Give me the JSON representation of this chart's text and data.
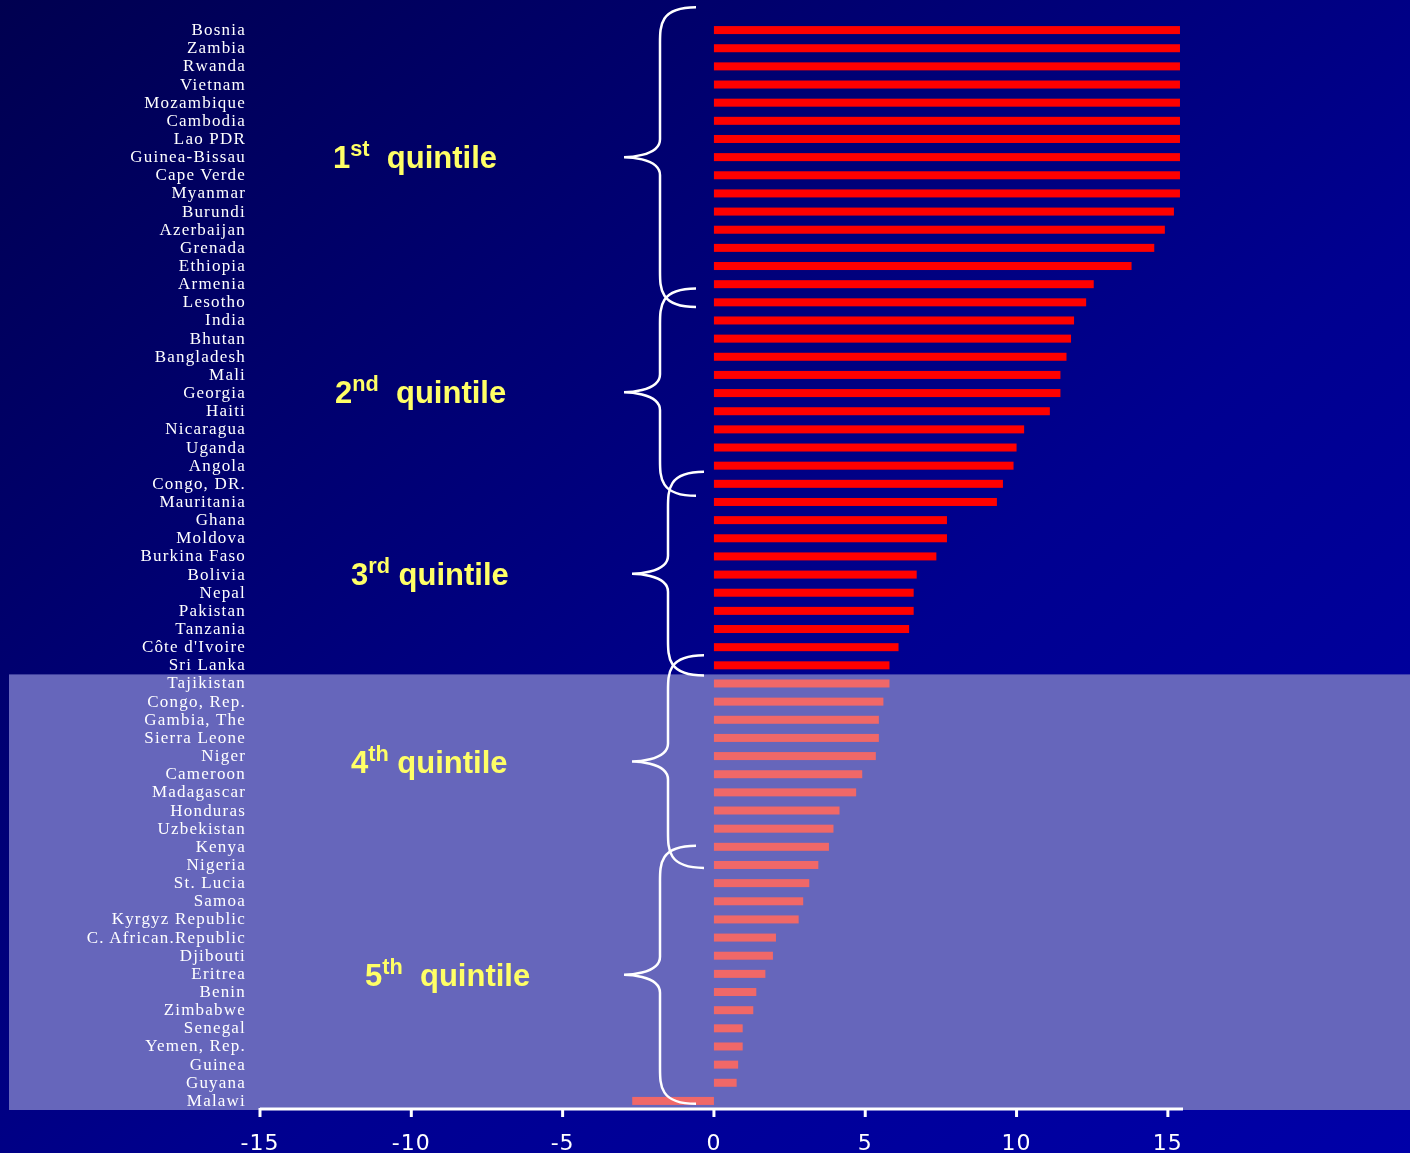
{
  "chart_data": {
    "type": "bar",
    "orientation": "horizontal",
    "categories": [
      "Bosnia",
      "Zambia",
      "Rwanda",
      "Vietnam",
      "Mozambique",
      "Cambodia",
      "Lao PDR",
      "Guinea-Bissau",
      "Cape Verde",
      "Myanmar",
      "Burundi",
      "Azerbaijan",
      "Grenada",
      "Ethiopia",
      "Armenia",
      "Lesotho",
      "India",
      "Bhutan",
      "Bangladesh",
      "Mali",
      "Georgia",
      "Haiti",
      "Nicaragua",
      "Uganda",
      "Angola",
      "Congo, DR.",
      "Mauritania",
      "Ghana",
      "Moldova",
      "Burkina Faso",
      "Bolivia",
      "Nepal",
      "Pakistan",
      "Tanzania",
      "Côte d'Ivoire",
      "Sri Lanka",
      "Tajikistan",
      "Congo, Rep.",
      "Gambia, The",
      "Sierra Leone",
      "Niger",
      "Cameroon",
      "Madagascar",
      "Honduras",
      "Uzbekistan",
      "Kenya",
      "Nigeria",
      "St. Lucia",
      "Samoa",
      "Kyrgyz Republic",
      "C. African.Republic",
      "Djibouti",
      "Eritrea",
      "Benin",
      "Zimbabwe",
      "Senegal",
      "Yemen, Rep.",
      "Guinea",
      "Guyana",
      "Malawi"
    ],
    "values": [
      15.4,
      15.4,
      15.4,
      15.4,
      15.4,
      15.4,
      15.4,
      15.4,
      15.4,
      15.4,
      15.2,
      14.9,
      14.55,
      13.8,
      12.55,
      12.3,
      11.9,
      11.8,
      11.65,
      11.45,
      11.45,
      11.1,
      10.25,
      10.0,
      9.9,
      9.55,
      9.35,
      7.7,
      7.7,
      7.35,
      6.7,
      6.6,
      6.6,
      6.45,
      6.1,
      5.8,
      5.8,
      5.6,
      5.45,
      5.45,
      5.35,
      4.9,
      4.7,
      4.15,
      3.95,
      3.8,
      3.45,
      3.15,
      2.95,
      2.8,
      2.05,
      1.95,
      1.7,
      1.4,
      1.3,
      0.95,
      0.95,
      0.8,
      0.75,
      -2.7
    ],
    "colors": [
      "#ff0000",
      "#ff0000",
      "#ff0000",
      "#ff0000",
      "#ff0000",
      "#ff0000",
      "#ff0000",
      "#ff0000",
      "#ff0000",
      "#ff0000",
      "#ff0000",
      "#ff0000",
      "#ff0000",
      "#ff0000",
      "#ff0000",
      "#ff0000",
      "#ff0000",
      "#ff0000",
      "#ff0000",
      "#ff0000",
      "#ff0000",
      "#ff0000",
      "#ff0000",
      "#ff0000",
      "#ff0000",
      "#ff0000",
      "#ff0000",
      "#ff0000",
      "#ff0000",
      "#ff0000",
      "#ff0000",
      "#ff0000",
      "#ff0000",
      "#ff0000",
      "#ff0000",
      "#ff0000",
      "#f06868",
      "#f06868",
      "#f06868",
      "#f06868",
      "#f06868",
      "#f06868",
      "#f06868",
      "#f06868",
      "#f06868",
      "#f06868",
      "#f06868",
      "#f06868",
      "#f06868",
      "#f06868",
      "#f06868",
      "#f06868",
      "#f06868",
      "#f06868",
      "#f06868",
      "#f06868",
      "#f06868",
      "#f06868",
      "#f06868",
      "#f06868"
    ],
    "xlim": [
      -15,
      15.5
    ],
    "xticks": [
      -15,
      -10,
      -5,
      0,
      5,
      10,
      15
    ],
    "bands": [
      {
        "axis": "y",
        "from": "Tajikistan",
        "to": "Malawi",
        "color": "#6666bb"
      }
    ],
    "annotations": [
      "1$^{st}$  quintile",
      "2$^{nd}$  quintile",
      "3$^{rd}$ quintile",
      "4$^{th}$ quintile",
      "5$^{th}$  quintile"
    ],
    "grid": false
  }
}
